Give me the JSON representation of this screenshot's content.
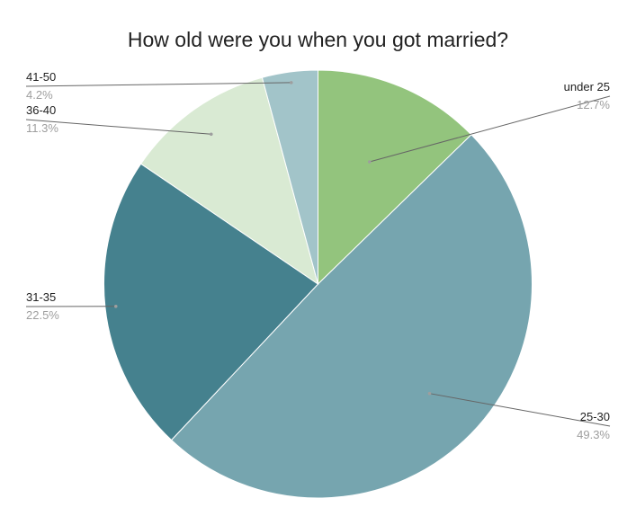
{
  "chart_data": {
    "type": "pie",
    "title": "How old were you when you got married?",
    "slices": [
      {
        "label": "under 25",
        "value": 12.7,
        "display": "12.7%",
        "color": "#93c47d"
      },
      {
        "label": "25-30",
        "value": 49.3,
        "display": "49.3%",
        "color": "#76a5af"
      },
      {
        "label": "31-35",
        "value": 22.5,
        "display": "22.5%",
        "color": "#45818e"
      },
      {
        "label": "36-40",
        "value": 11.3,
        "display": "11.3%",
        "color": "#d9ead3"
      },
      {
        "label": "41-50",
        "value": 4.2,
        "display": "4.2%",
        "color": "#a2c4c9"
      }
    ],
    "start_angle_deg": 0,
    "direction": "clockwise",
    "legend": "none",
    "label_style": "outside labels with leader lines"
  }
}
